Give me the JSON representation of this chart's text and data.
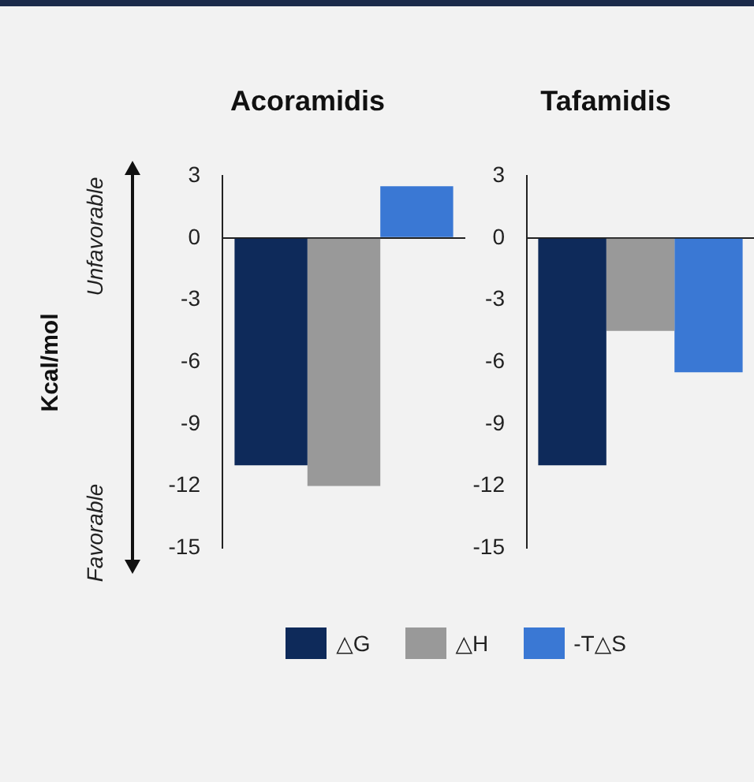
{
  "chart_data": [
    {
      "type": "bar",
      "title": "Acoramidis",
      "ylabel": "Kcal/mol",
      "categories": [
        null
      ],
      "series": [
        {
          "name": "△G",
          "color": "#0e2a5a",
          "values": [
            -11
          ]
        },
        {
          "name": "△H",
          "color": "#999999",
          "values": [
            -12
          ]
        },
        {
          "name": "-T△S",
          "color": "#3a78d4",
          "values": [
            2.5
          ]
        }
      ],
      "ylim": [
        -15,
        3
      ],
      "yticks": [
        -15,
        -12,
        -9,
        -6,
        -3,
        0,
        3
      ],
      "ref_lines": [
        {
          "axis": "y",
          "value": 0,
          "color": "#222222"
        }
      ],
      "annotations": [
        "Unfavorable",
        "Favorable"
      ],
      "legend": "bottom",
      "tick_labels": "y"
    },
    {
      "type": "bar",
      "title": "Tafamidis",
      "categories": [
        null
      ],
      "series": [
        {
          "color": "#0e2a5a",
          "values": [
            -11
          ]
        },
        {
          "color": "#999999",
          "values": [
            -4.5
          ]
        },
        {
          "color": "#3a78d4",
          "values": [
            -6.5
          ]
        }
      ],
      "ylim": [
        -15,
        3
      ],
      "yticks": [
        -15,
        -12,
        -9,
        -6,
        -3,
        0,
        3
      ],
      "ref_lines": [
        {
          "axis": "y",
          "value": 0,
          "color": "#222222"
        }
      ],
      "tick_labels": "y"
    }
  ]
}
